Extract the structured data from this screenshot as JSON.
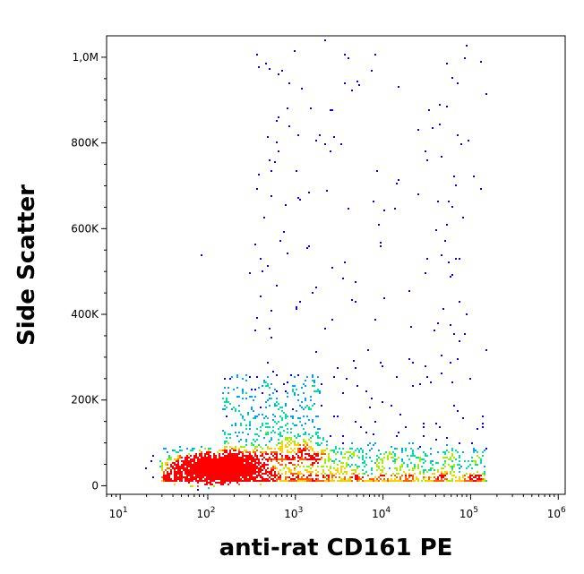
{
  "chart_data": {
    "type": "scatter",
    "subtype": "flow-cytometry-density-dot-plot",
    "xlabel": "anti-rat CD161 PE",
    "ylabel": "Side Scatter",
    "x_scale": "log",
    "x_range": [
      7,
      1200000
    ],
    "y_range": [
      -20000,
      1050000
    ],
    "x_ticks": [
      {
        "value": 10,
        "base": "10",
        "exp": "1"
      },
      {
        "value": 100,
        "base": "10",
        "exp": "2"
      },
      {
        "value": 1000,
        "base": "10",
        "exp": "3"
      },
      {
        "value": 10000,
        "base": "10",
        "exp": "4"
      },
      {
        "value": 100000,
        "base": "10",
        "exp": "5"
      },
      {
        "value": 1000000,
        "base": "10",
        "exp": "6"
      }
    ],
    "y_ticks": [
      {
        "value": 0,
        "label": "0"
      },
      {
        "value": 200000,
        "label": "200K"
      },
      {
        "value": 400000,
        "label": "400K"
      },
      {
        "value": 600000,
        "label": "600K"
      },
      {
        "value": 800000,
        "label": "800K"
      },
      {
        "value": 1000000,
        "label": "1,0M"
      }
    ],
    "grid": false,
    "legend": "none",
    "density_colors": [
      "#0000ff",
      "#00a0ff",
      "#00e0a0",
      "#a0f000",
      "#ffd000",
      "#ff6000",
      "#ff0000"
    ],
    "populations": [
      {
        "name": "main",
        "center_x": 130,
        "center_y": 40000,
        "spread_log_x": 0.22,
        "spread_y": 14000,
        "count": 2400
      },
      {
        "name": "spread-low",
        "x_min": 30,
        "x_max": 150000,
        "y_min": 10000,
        "y_max": 90000,
        "count": 1500
      },
      {
        "name": "mid",
        "x_min": 150,
        "x_max": 2000,
        "y_min": 60000,
        "y_max": 260000,
        "count": 600
      },
      {
        "name": "sparse",
        "x_min": 300,
        "x_max": 150000,
        "y_min": 80000,
        "y_max": 1040000,
        "count": 260
      }
    ],
    "points_sample": [
      [
        85,
        540000
      ],
      [
        700,
        970000
      ],
      [
        800,
        880000
      ],
      [
        650,
        860000
      ],
      [
        870,
        840000
      ],
      [
        1500,
        880000
      ],
      [
        70000,
        940000
      ],
      [
        70000,
        820000
      ],
      [
        25000,
        680000
      ],
      [
        2300,
        690000
      ],
      [
        9000,
        610000
      ],
      [
        9500,
        560000
      ],
      [
        47000,
        540000
      ],
      [
        55000,
        520000
      ],
      [
        20000,
        455000
      ],
      [
        75000,
        430000
      ],
      [
        90000,
        400000
      ],
      [
        420,
        500000
      ],
      [
        500,
        760000
      ],
      [
        600,
        800000
      ]
    ]
  }
}
